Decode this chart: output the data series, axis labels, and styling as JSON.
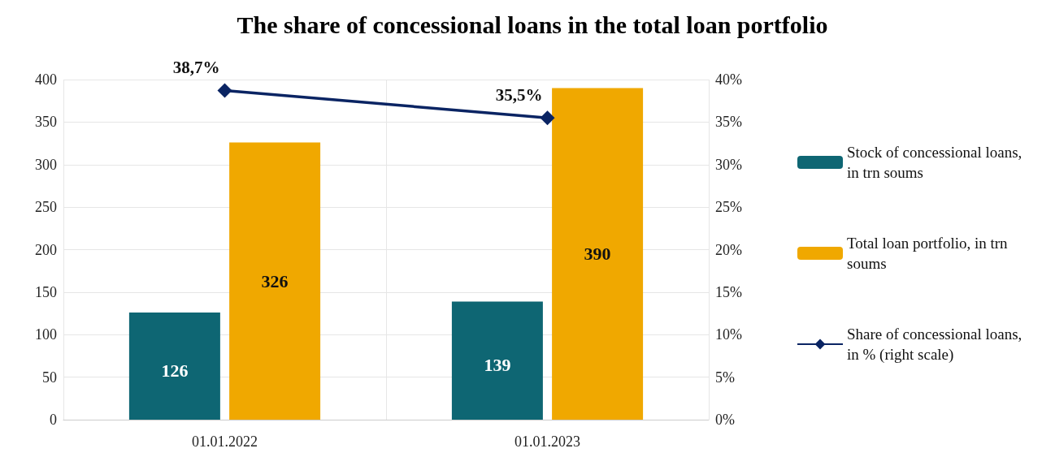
{
  "chart_data": {
    "type": "bar",
    "title": "The share of concessional loans in the total loan portfolio",
    "categories": [
      "01.01.2022",
      "01.01.2023"
    ],
    "series": [
      {
        "name": "Stock of concessional loans, in trn soums",
        "color": "#0e6673",
        "values": [
          126,
          139
        ],
        "value_labels": [
          "126",
          "139"
        ]
      },
      {
        "name": "Total loan portfolio, in trn soums",
        "color": "#f0a800",
        "values": [
          326,
          390
        ],
        "value_labels": [
          "326",
          "390"
        ]
      },
      {
        "name": "Share of concessional loans, in % (right scale)",
        "type": "line",
        "axis": "y2",
        "color": "#0a2463",
        "values": [
          38.7,
          35.5
        ],
        "value_labels": [
          "38,7%",
          "35,5%"
        ],
        "marker": "diamond",
        "line_style": "solid"
      }
    ],
    "ylim": [
      0,
      400
    ],
    "yticks": [
      0,
      50,
      100,
      150,
      200,
      250,
      300,
      350,
      400
    ],
    "y2lim": [
      0,
      40
    ],
    "y2ticks": [
      {
        "value": 0,
        "label": "0%"
      },
      {
        "value": 5,
        "label": "5%"
      },
      {
        "value": 10,
        "label": "10%"
      },
      {
        "value": 15,
        "label": "15%"
      },
      {
        "value": 20,
        "label": "20%"
      },
      {
        "value": 25,
        "label": "25%"
      },
      {
        "value": 30,
        "label": "30%"
      },
      {
        "value": 35,
        "label": "35%"
      },
      {
        "value": 40,
        "label": "40%"
      }
    ],
    "grid": true,
    "legend": "right"
  }
}
